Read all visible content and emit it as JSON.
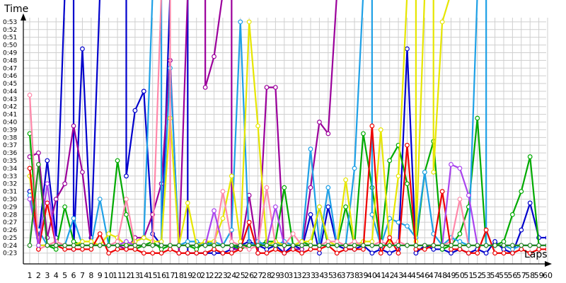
{
  "chart_data": {
    "type": "line",
    "ylabel": "Time",
    "xlabel": "Laps",
    "y_unit_note": "seconds shown as m:ss",
    "ylim": [
      21.6,
      54.0
    ],
    "y_tick_labels": [
      "0:23",
      "0:24",
      "0:25",
      "0:26",
      "0:27",
      "0:28",
      "0:29",
      "0:30",
      "0:31",
      "0:32",
      "0:33",
      "0:34",
      "0:35",
      "0:36",
      "0:37",
      "0:38",
      "0:39",
      "0:40",
      "0:41",
      "0:42",
      "0:43",
      "0:44",
      "0:45",
      "0:46",
      "0:47",
      "0:48",
      "0:49",
      "0:50",
      "0:51",
      "0:52",
      "0:53"
    ],
    "y_tick_values": [
      23,
      24,
      25,
      26,
      27,
      28,
      29,
      30,
      31,
      32,
      33,
      34,
      35,
      36,
      37,
      38,
      39,
      40,
      41,
      42,
      43,
      44,
      45,
      46,
      47,
      48,
      49,
      50,
      51,
      52,
      53
    ],
    "x": [
      1,
      2,
      3,
      4,
      5,
      6,
      7,
      8,
      9,
      10,
      11,
      12,
      13,
      14,
      15,
      16,
      17,
      18,
      19,
      20,
      21,
      22,
      23,
      24,
      25,
      26,
      27,
      28,
      29,
      30,
      31,
      32,
      33,
      34,
      35,
      36,
      37,
      38,
      39,
      40,
      41,
      42,
      43,
      44,
      45,
      46,
      47,
      48,
      49,
      50,
      51,
      52,
      53,
      54,
      55,
      56,
      57,
      58,
      59,
      60
    ],
    "grid": true,
    "series": [
      {
        "color": "#0000cc",
        "values": [
          31.0,
          25.0,
          35.0,
          25.0,
          null,
          23.5,
          49.5,
          25.0,
          null,
          null,
          null,
          33.0,
          41.5,
          44.0,
          25.5,
          24.0,
          null,
          null,
          23.0,
          23.0,
          23.0,
          23.0,
          23.0,
          23.5,
          24.0,
          24.5,
          24.0,
          23.5,
          24.0,
          23.0,
          24.0,
          23.5,
          28.0,
          23.0,
          29.0,
          24.0,
          23.5,
          23.5,
          24.0,
          23.0,
          23.5,
          23.0,
          23.5,
          49.5,
          23.0,
          24.0,
          23.5,
          23.5,
          23.0,
          23.5,
          23.0,
          23.5,
          23.0,
          24.5,
          23.5,
          23.0,
          26.0,
          29.5,
          25.0,
          25.0
        ]
      },
      {
        "color": "#9b009b",
        "values": [
          35.5,
          36.0,
          25.0,
          30.0,
          32.0,
          39.5,
          33.5,
          24.0,
          24.0,
          24.0,
          24.0,
          23.5,
          25.0,
          25.0,
          28.0,
          32.0,
          48.0,
          23.0,
          null,
          null,
          44.5,
          48.5,
          null,
          23.5,
          23.5,
          30.5,
          23.0,
          44.5,
          44.5,
          23.0,
          23.5,
          23.5,
          31.5,
          40.0,
          38.5,
          null,
          null,
          null,
          null,
          null,
          null,
          null,
          null,
          null,
          null,
          null,
          null,
          null,
          null,
          null,
          null,
          null,
          null,
          null,
          null,
          null,
          null,
          null,
          null,
          null
        ]
      },
      {
        "color": "#00aa00",
        "values": [
          38.5,
          24.0,
          24.0,
          23.5,
          29.0,
          24.5,
          24.0,
          24.0,
          24.0,
          24.0,
          35.0,
          28.0,
          23.5,
          24.0,
          24.5,
          23.5,
          24.0,
          24.0,
          24.0,
          23.5,
          24.5,
          24.0,
          24.0,
          24.0,
          23.5,
          24.0,
          24.0,
          24.5,
          24.5,
          31.5,
          24.0,
          24.5,
          24.0,
          29.0,
          24.0,
          24.0,
          29.0,
          24.0,
          38.5,
          31.5,
          24.0,
          35.0,
          37.0,
          32.0,
          24.0,
          33.5,
          37.5,
          23.5,
          24.0,
          25.5,
          29.0,
          40.5,
          24.0,
          24.0,
          24.5,
          28.0,
          31.0,
          35.5,
          24.0,
          24.0
        ]
      },
      {
        "color": "#1ea0e6",
        "values": [
          30.5,
          26.0,
          24.0,
          24.0,
          24.0,
          27.5,
          24.0,
          24.0,
          30.0,
          24.0,
          24.0,
          24.0,
          24.5,
          25.0,
          null,
          24.0,
          47.0,
          24.0,
          24.5,
          24.5,
          24.0,
          24.5,
          24.0,
          26.0,
          53.0,
          24.0,
          24.5,
          24.0,
          24.0,
          24.5,
          24.0,
          24.0,
          36.5,
          24.0,
          31.5,
          24.0,
          24.0,
          34.0,
          null,
          28.0,
          24.0,
          27.5,
          27.0,
          26.5,
          25.0,
          33.5,
          25.5,
          24.0,
          25.0,
          24.5,
          24.0,
          null,
          24.0,
          24.0,
          24.0,
          23.5,
          24.0,
          24.0,
          24.0,
          24.0
        ]
      },
      {
        "color": "#e6e600",
        "values": [
          33.0,
          24.0,
          24.0,
          24.5,
          24.0,
          24.0,
          24.5,
          24.5,
          24.0,
          25.5,
          25.0,
          24.0,
          24.5,
          25.0,
          24.5,
          24.5,
          40.5,
          24.0,
          29.5,
          24.0,
          24.5,
          24.5,
          27.5,
          33.0,
          24.5,
          53.0,
          39.5,
          24.0,
          24.5,
          24.0,
          24.0,
          24.5,
          24.5,
          29.0,
          24.5,
          24.0,
          32.5,
          24.0,
          24.5,
          24.5,
          39.0,
          24.0,
          33.0,
          null,
          24.5,
          null,
          33.5,
          53.0,
          null,
          null,
          null,
          null,
          null,
          null,
          null,
          null,
          null,
          null,
          null,
          null
        ]
      },
      {
        "color": "#ff88aa",
        "values": [
          43.5,
          23.5,
          24.0,
          24.5,
          24.0,
          24.0,
          24.0,
          24.0,
          24.0,
          24.0,
          24.5,
          30.0,
          24.0,
          24.0,
          24.0,
          null,
          24.0,
          24.0,
          24.0,
          24.0,
          24.0,
          24.0,
          31.0,
          24.5,
          24.0,
          23.5,
          24.0,
          31.5,
          24.0,
          24.0,
          25.5,
          24.0,
          24.0,
          24.0,
          24.5,
          24.5,
          24.0,
          24.5,
          24.0,
          24.0,
          24.5,
          24.0,
          24.5,
          24.0,
          24.0,
          24.0,
          24.0,
          24.0,
          24.5,
          30.0,
          24.0,
          24.0,
          24.0,
          24.0,
          24.0,
          24.0,
          24.0,
          24.0,
          24.0,
          24.0
        ]
      },
      {
        "color": "#ee0000",
        "values": [
          34.0,
          23.5,
          29.5,
          24.0,
          23.5,
          23.5,
          23.5,
          23.5,
          25.5,
          23.0,
          23.5,
          23.5,
          23.5,
          23.0,
          23.0,
          23.0,
          23.5,
          23.0,
          23.0,
          23.0,
          23.0,
          23.5,
          23.0,
          23.0,
          23.5,
          27.0,
          23.0,
          23.0,
          23.5,
          23.0,
          23.5,
          23.0,
          23.5,
          23.5,
          24.0,
          23.0,
          23.5,
          23.5,
          23.5,
          39.5,
          23.0,
          25.0,
          23.0,
          37.0,
          23.5,
          23.5,
          24.0,
          31.0,
          23.5,
          23.5,
          23.0,
          23.0,
          26.0,
          23.0,
          23.0,
          23.0,
          23.5,
          23.0,
          23.5,
          23.5
        ]
      },
      {
        "color": "#aa44ee",
        "values": [
          30.0,
          24.0,
          32.0,
          24.0,
          24.0,
          24.0,
          24.0,
          24.0,
          24.0,
          24.0,
          24.0,
          24.5,
          24.0,
          24.0,
          24.0,
          24.0,
          24.0,
          24.0,
          24.0,
          24.0,
          24.0,
          28.5,
          24.0,
          24.0,
          24.0,
          24.0,
          24.0,
          24.0,
          29.0,
          24.0,
          24.0,
          24.0,
          24.0,
          24.0,
          24.0,
          24.0,
          24.0,
          24.0,
          24.0,
          24.0,
          24.0,
          24.0,
          24.0,
          24.0,
          24.0,
          24.0,
          24.0,
          24.0,
          34.5,
          34.0,
          30.5,
          24.0,
          24.0,
          24.0,
          24.0,
          24.0,
          24.0,
          24.0,
          24.0,
          24.0
        ]
      },
      {
        "color": "#228b22",
        "values": [
          24.0,
          34.5,
          24.0,
          24.0,
          24.0,
          24.0,
          24.0,
          24.0,
          24.0,
          24.0,
          24.0,
          24.0,
          24.0,
          24.0,
          24.0,
          24.0,
          24.0,
          24.0,
          24.0,
          24.0,
          24.0,
          24.0,
          24.0,
          24.0,
          24.0,
          24.0,
          24.0,
          24.0,
          24.0,
          24.0,
          24.0,
          24.0,
          24.0,
          24.0,
          24.0,
          24.0,
          24.0,
          24.0,
          24.0,
          24.0,
          24.0,
          24.0,
          24.0,
          24.0,
          24.0,
          24.0,
          24.0,
          24.0,
          24.0,
          24.0,
          24.0,
          24.0,
          24.0,
          24.0,
          24.0,
          24.0,
          24.0,
          24.0,
          24.0,
          24.0
        ]
      }
    ]
  }
}
